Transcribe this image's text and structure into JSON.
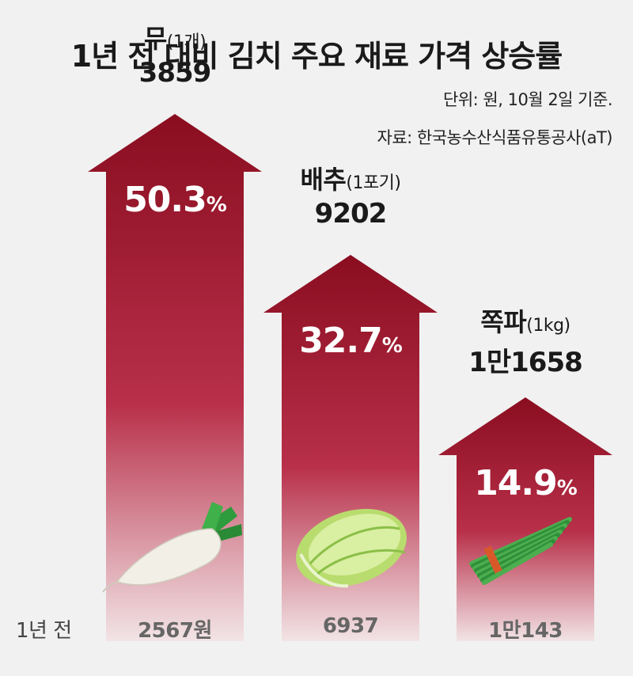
{
  "title": "1년 전 대비 김치 주요 재료 가격 상승률",
  "unit_note": "단위: 원, 10월 2일 기준.",
  "source_note": "자료: 한국농수산식품유통공사(aT)",
  "prev_label": "1년 전",
  "colors": {
    "arrow_top": "#8a0d1f",
    "arrow_mid": "#b8304a",
    "arrow_bottom": "#f2e4e6"
  },
  "chart_data": {
    "type": "bar",
    "categories": [
      "무",
      "배추",
      "쪽파"
    ],
    "units": [
      "(1개)",
      "(1포기)",
      "(1kg)"
    ],
    "current_prices": [
      "3859",
      "9202",
      "1만1658"
    ],
    "previous_prices": [
      "2567원",
      "6937",
      "1만143"
    ],
    "current_values": [
      3859,
      9202,
      11658
    ],
    "previous_values": [
      2567,
      6937,
      10143
    ],
    "series": [
      {
        "values": [
          50.3,
          32.7,
          14.9
        ]
      }
    ],
    "pct_labels": [
      "50.3",
      "32.7",
      "14.9"
    ],
    "pct_suffix": "%",
    "icons": [
      "radish-icon",
      "cabbage-icon",
      "green-onion-icon"
    ]
  }
}
